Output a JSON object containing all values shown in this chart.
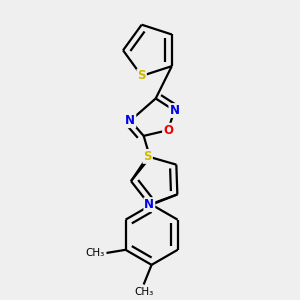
{
  "background_color": "#efefef",
  "bond_color": "#000000",
  "atom_colors": {
    "S": "#ccbb00",
    "N": "#0000ee",
    "O": "#ee0000",
    "C": "#000000"
  },
  "bond_width": 1.6,
  "font_size_atom": 8.5
}
